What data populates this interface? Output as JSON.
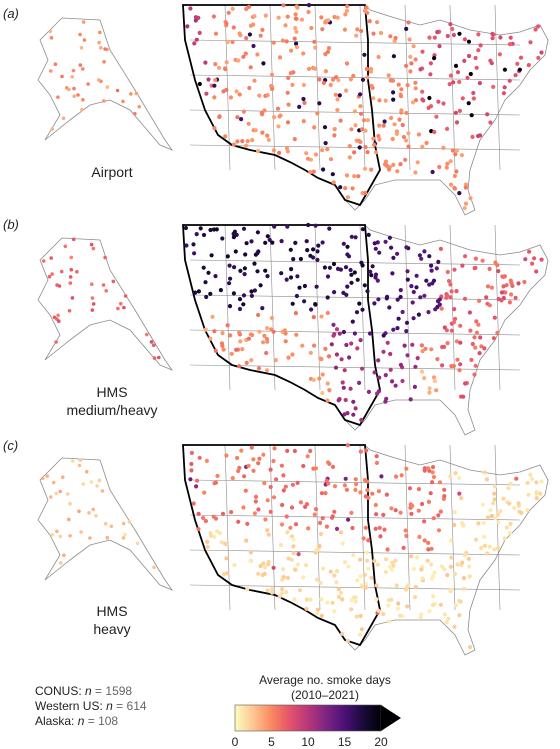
{
  "panels": [
    {
      "letter": "(a)",
      "caption_lines": [
        "Airport"
      ]
    },
    {
      "letter": "(b)",
      "caption_lines": [
        "HMS",
        "medium/heavy"
      ]
    },
    {
      "letter": "(c)",
      "caption_lines": [
        "HMS",
        "heavy"
      ]
    }
  ],
  "legend": {
    "title_line1": "Average no. smoke days",
    "title_line2": "(2010–2021)",
    "ticks": [
      "0",
      "5",
      "10",
      "15",
      "20"
    ],
    "range": [
      0,
      20
    ],
    "extends_above_max": true,
    "colormap": [
      "#fcfdbf",
      "#fdc692",
      "#fb8861",
      "#e3536b",
      "#b73779",
      "#7d2482",
      "#4c1178",
      "#1a0b3b",
      "#000004"
    ]
  },
  "counts": [
    {
      "label": "CONUS:",
      "n_label": "n",
      "value": "1598"
    },
    {
      "label": "Western US:",
      "n_label": "n",
      "value": "614"
    },
    {
      "label": "Alaska:",
      "n_label": "n",
      "value": "108"
    }
  ],
  "colors": {
    "state_borders": "#8c8c8c",
    "western_us_outline": "#000000"
  }
}
